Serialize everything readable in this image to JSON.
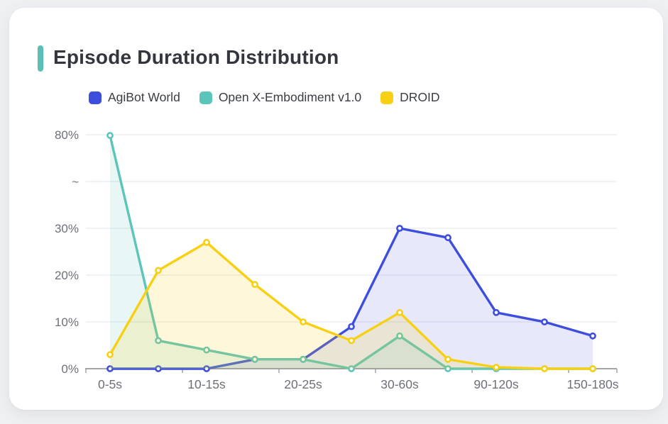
{
  "card": {
    "title": "Episode Duration Distribution",
    "accent_color": "#5bbfb5"
  },
  "chart_data": {
    "type": "line",
    "title": "Episode Duration Distribution",
    "legend": {
      "position": "top",
      "entries": [
        "AgiBot World",
        "Open X-Embodiment v1.0",
        "DROID"
      ]
    },
    "x_axis": {
      "num_categories": 11,
      "tick_labels": [
        "0-5s",
        "10-15s",
        "20-25s",
        "30-60s",
        "90-120s",
        "150-180s"
      ],
      "labeled_category_indices": [
        0,
        2,
        4,
        6,
        8,
        10
      ]
    },
    "y_axis": {
      "tick_labels": [
        "0%",
        "10%",
        "20%",
        "30%",
        "~",
        "80%"
      ],
      "tick_values": [
        0,
        10,
        20,
        30,
        null,
        80
      ],
      "axis_break": {
        "between": [
          30,
          80
        ]
      },
      "grid": true
    },
    "series": [
      {
        "name": "AgiBot World",
        "color": "#3d4ede",
        "fill_opacity": 0.12,
        "values": [
          0,
          0,
          0,
          2,
          2,
          9,
          30,
          28,
          12,
          10,
          7
        ]
      },
      {
        "name": "Open X-Embodiment v1.0",
        "color": "#5cc5ba",
        "fill_opacity": 0.14,
        "values": [
          79.6,
          6,
          4,
          2,
          2,
          0,
          7,
          0,
          0,
          0,
          0
        ]
      },
      {
        "name": "DROID",
        "color": "#f7d013",
        "fill_opacity": 0.16,
        "values": [
          3,
          21,
          27,
          18,
          10,
          6,
          12,
          2,
          0.3,
          0,
          0
        ]
      }
    ],
    "axis_text_color": "#6e7079"
  }
}
